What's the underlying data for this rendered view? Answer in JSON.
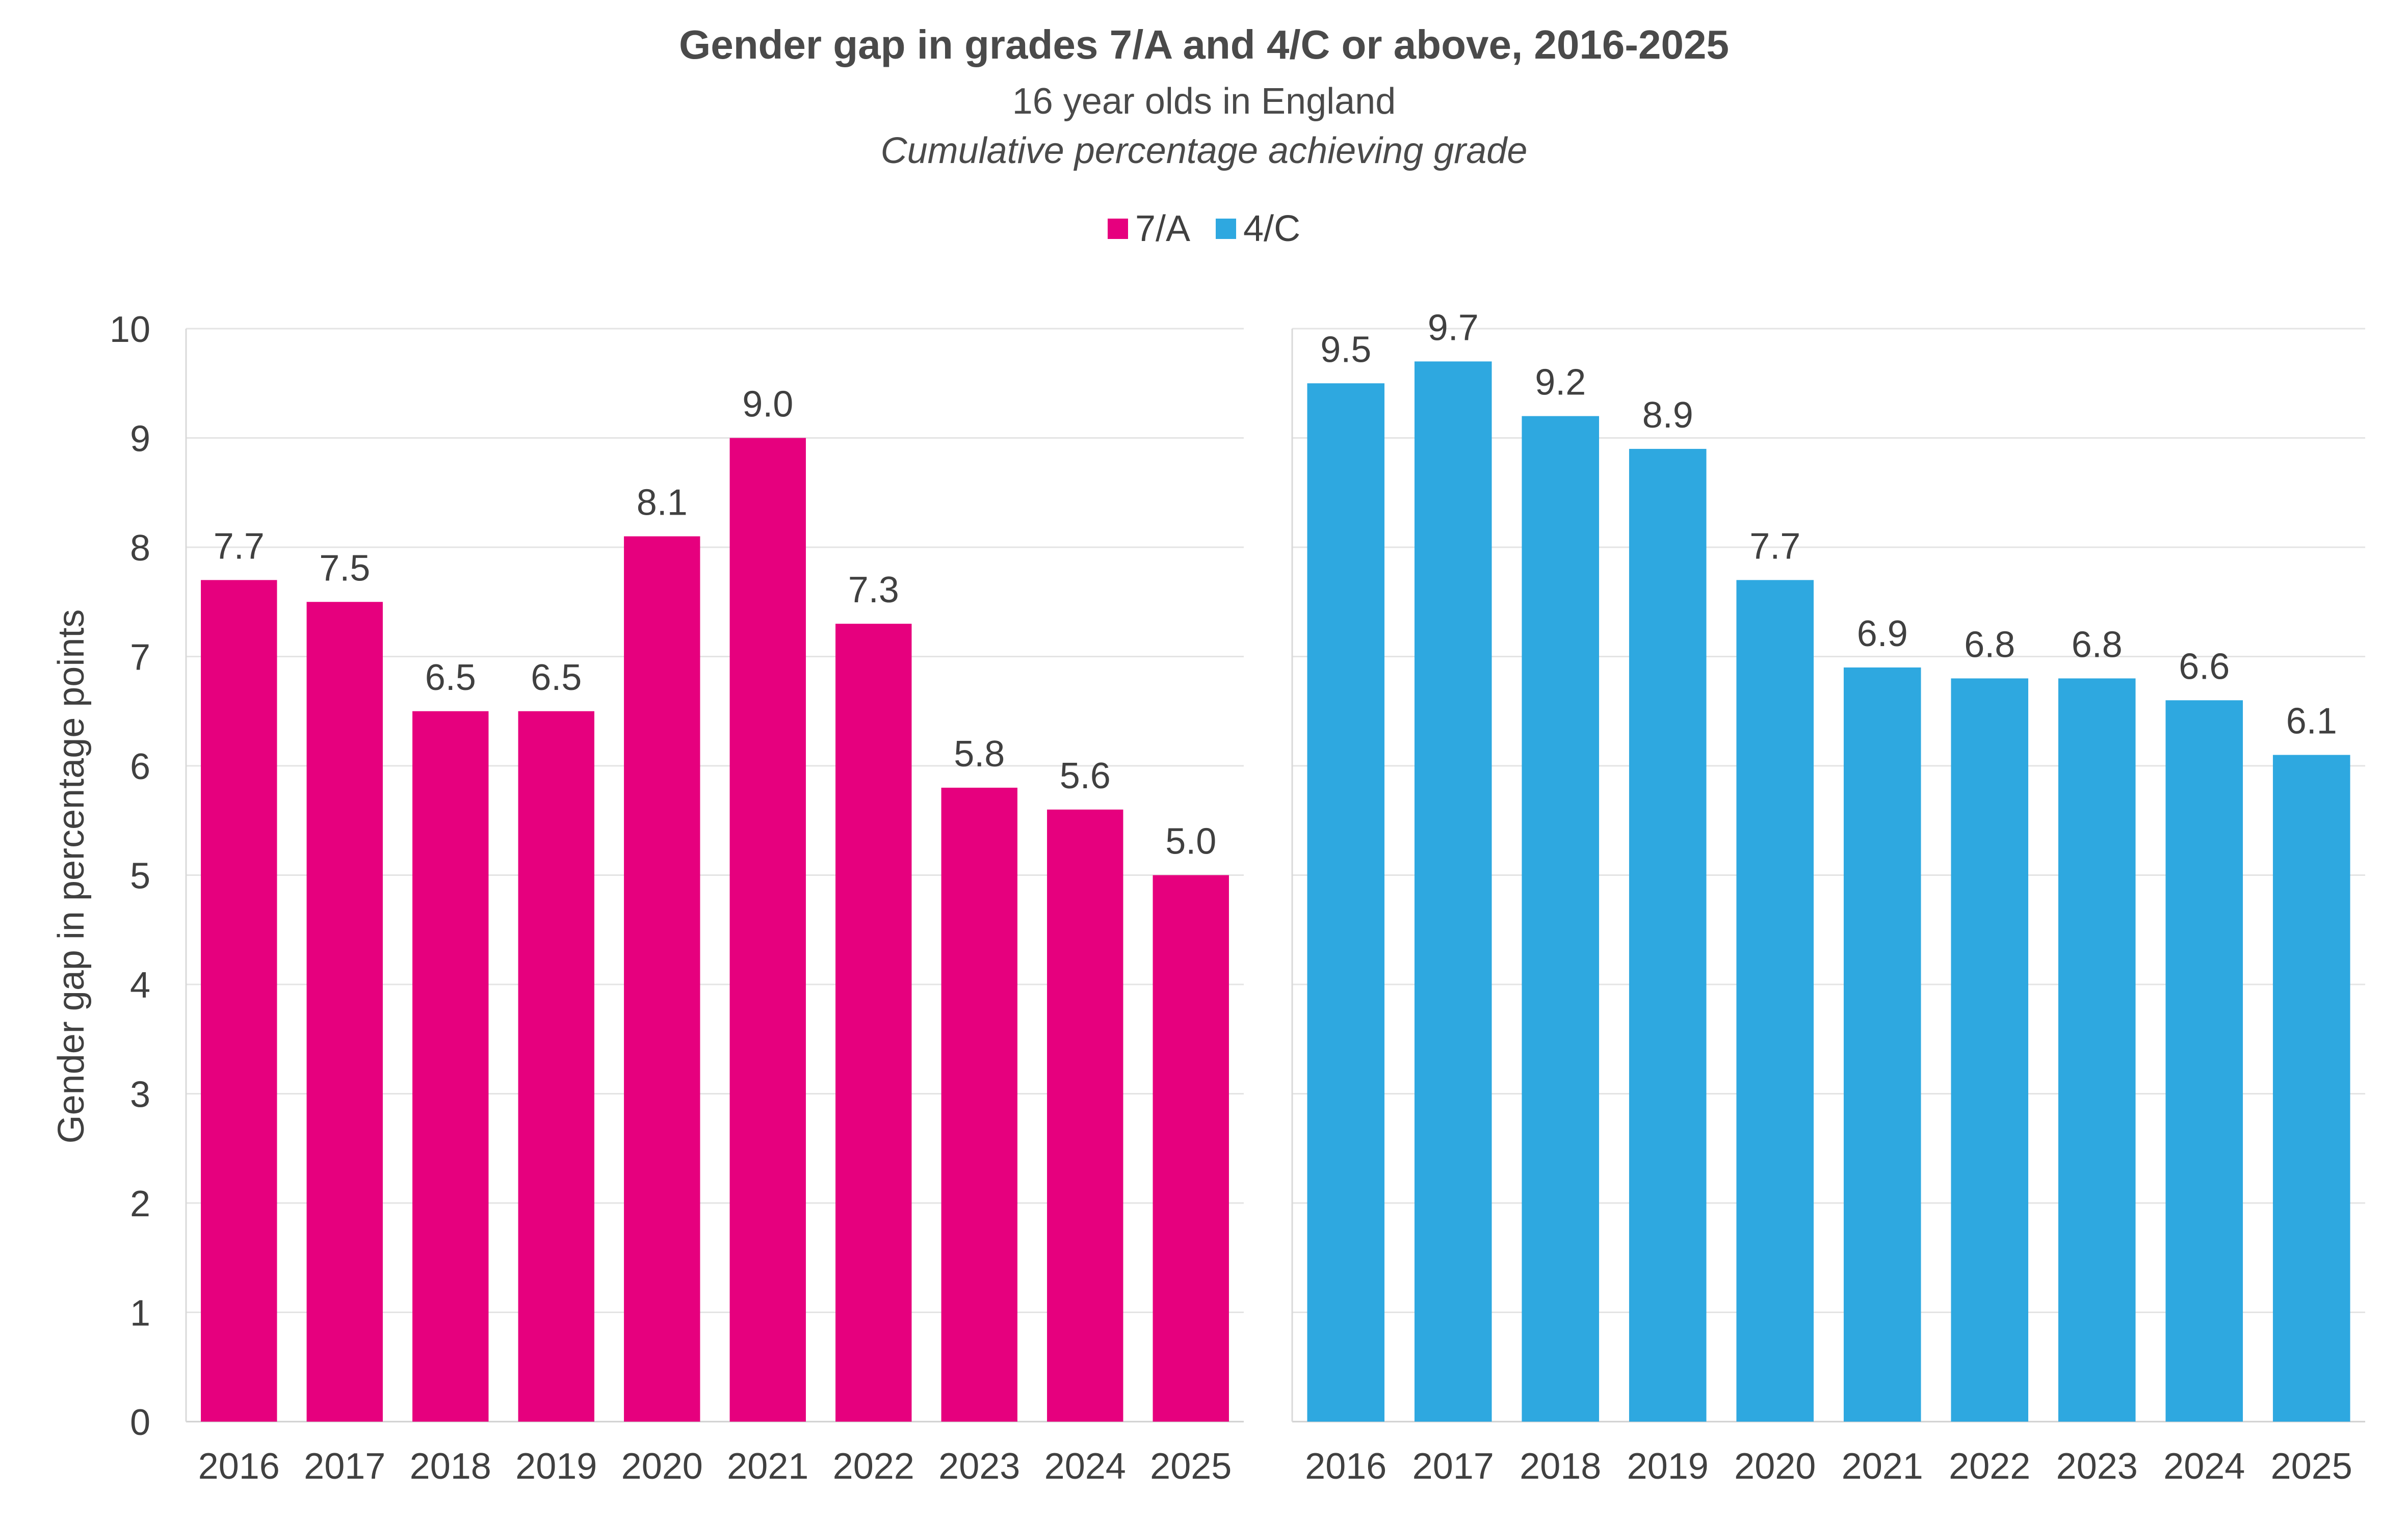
{
  "title": "Gender gap in grades 7/A and 4/C or above, 2016-2025",
  "subtitle": "16 year olds in England",
  "subtitle2": "Cumulative percentage achieving grade",
  "legend": [
    {
      "label": "7/A",
      "color": "#e6007e"
    },
    {
      "label": "4/C",
      "color": "#2ea8e0"
    }
  ],
  "ylabel": "Gender gap in percentage points",
  "chart_data": [
    {
      "type": "bar",
      "series_name": "7/A",
      "color": "#e6007e",
      "categories": [
        "2016",
        "2017",
        "2018",
        "2019",
        "2020",
        "2021",
        "2022",
        "2023",
        "2024",
        "2025"
      ],
      "values": [
        7.7,
        7.5,
        6.5,
        6.5,
        8.1,
        9.0,
        7.3,
        5.8,
        5.6,
        5.0
      ],
      "labels": [
        "7.7",
        "7.5",
        "6.5",
        "6.5",
        "8.1",
        "9.0",
        "7.3",
        "5.8",
        "5.6",
        "5.0"
      ],
      "ylim": [
        0,
        10
      ],
      "yticks": [
        "0",
        "1",
        "2",
        "3",
        "4",
        "5",
        "6",
        "7",
        "8",
        "9",
        "10"
      ],
      "ylabel": "Gender gap in percentage points",
      "grid": true
    },
    {
      "type": "bar",
      "series_name": "4/C",
      "color": "#2ea8e0",
      "categories": [
        "2016",
        "2017",
        "2018",
        "2019",
        "2020",
        "2021",
        "2022",
        "2023",
        "2024",
        "2025"
      ],
      "values": [
        9.5,
        9.7,
        9.2,
        8.9,
        7.7,
        6.9,
        6.8,
        6.8,
        6.6,
        6.1
      ],
      "labels": [
        "9.5",
        "9.7",
        "9.2",
        "8.9",
        "7.7",
        "6.9",
        "6.8",
        "6.8",
        "6.6",
        "6.1"
      ],
      "ylim": [
        0,
        10
      ],
      "grid": true
    }
  ]
}
